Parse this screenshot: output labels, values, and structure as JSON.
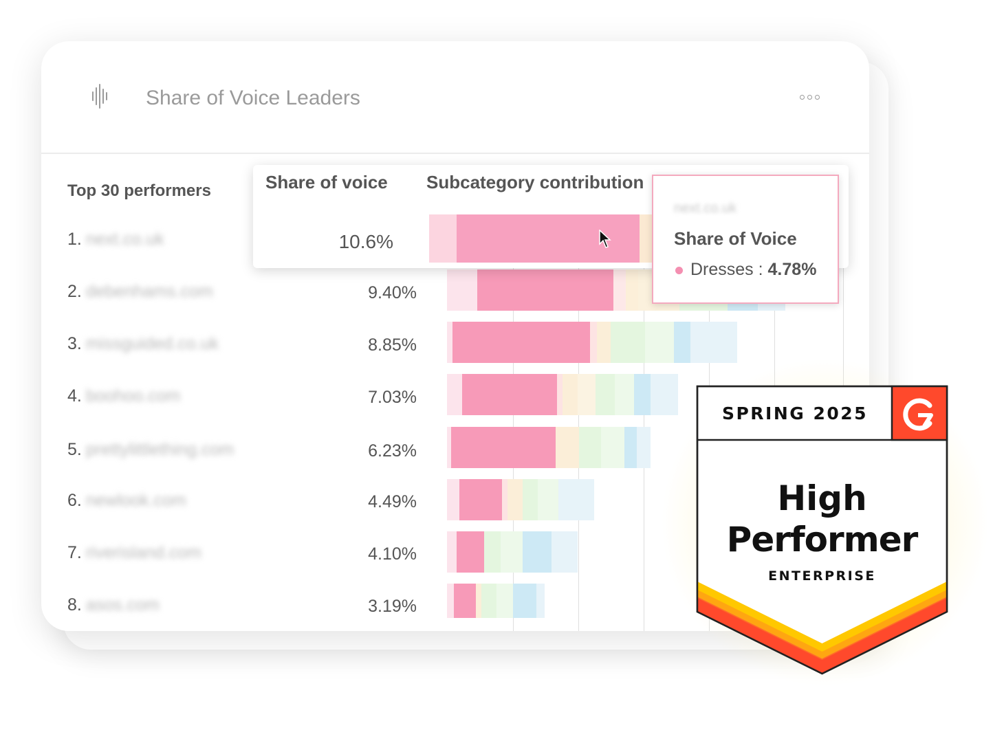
{
  "widget": {
    "title": "Share of Voice Leaders",
    "icon": "soundwave-icon",
    "menu_icon": "more-options-icon"
  },
  "columns": {
    "performers": "Top 30 performers",
    "share": "Share of voice",
    "contribution": "Subcategory contribution"
  },
  "rows": [
    {
      "rank": "1.",
      "site": "next.co.uk",
      "share": "10.6%"
    },
    {
      "rank": "2.",
      "site": "debenhams.com",
      "share": "9.40%"
    },
    {
      "rank": "3.",
      "site": "missguided.co.uk",
      "share": "8.85%"
    },
    {
      "rank": "4.",
      "site": "boohoo.com",
      "share": "7.03%"
    },
    {
      "rank": "5.",
      "site": "prettylittlething.com",
      "share": "6.23%"
    },
    {
      "rank": "6.",
      "site": "newlook.com",
      "share": "4.49%"
    },
    {
      "rank": "7.",
      "site": "riverisland.com",
      "share": "4.10%"
    },
    {
      "rank": "8.",
      "site": "asos.com",
      "share": "3.19%"
    }
  ],
  "tooltip": {
    "site": "next.co.uk",
    "title": "Share of Voice",
    "series": "Dresses : ",
    "value": "4.78%",
    "color": "#f48fb1"
  },
  "badge": {
    "season": "SPRING 2025",
    "title_line1": "High",
    "title_line2": "Performer",
    "segment": "ENTERPRISE",
    "logo": "G2",
    "colors": {
      "accent": "#ff492c",
      "yellow": "#ffc800",
      "orange": "#ff7a30"
    }
  }
}
